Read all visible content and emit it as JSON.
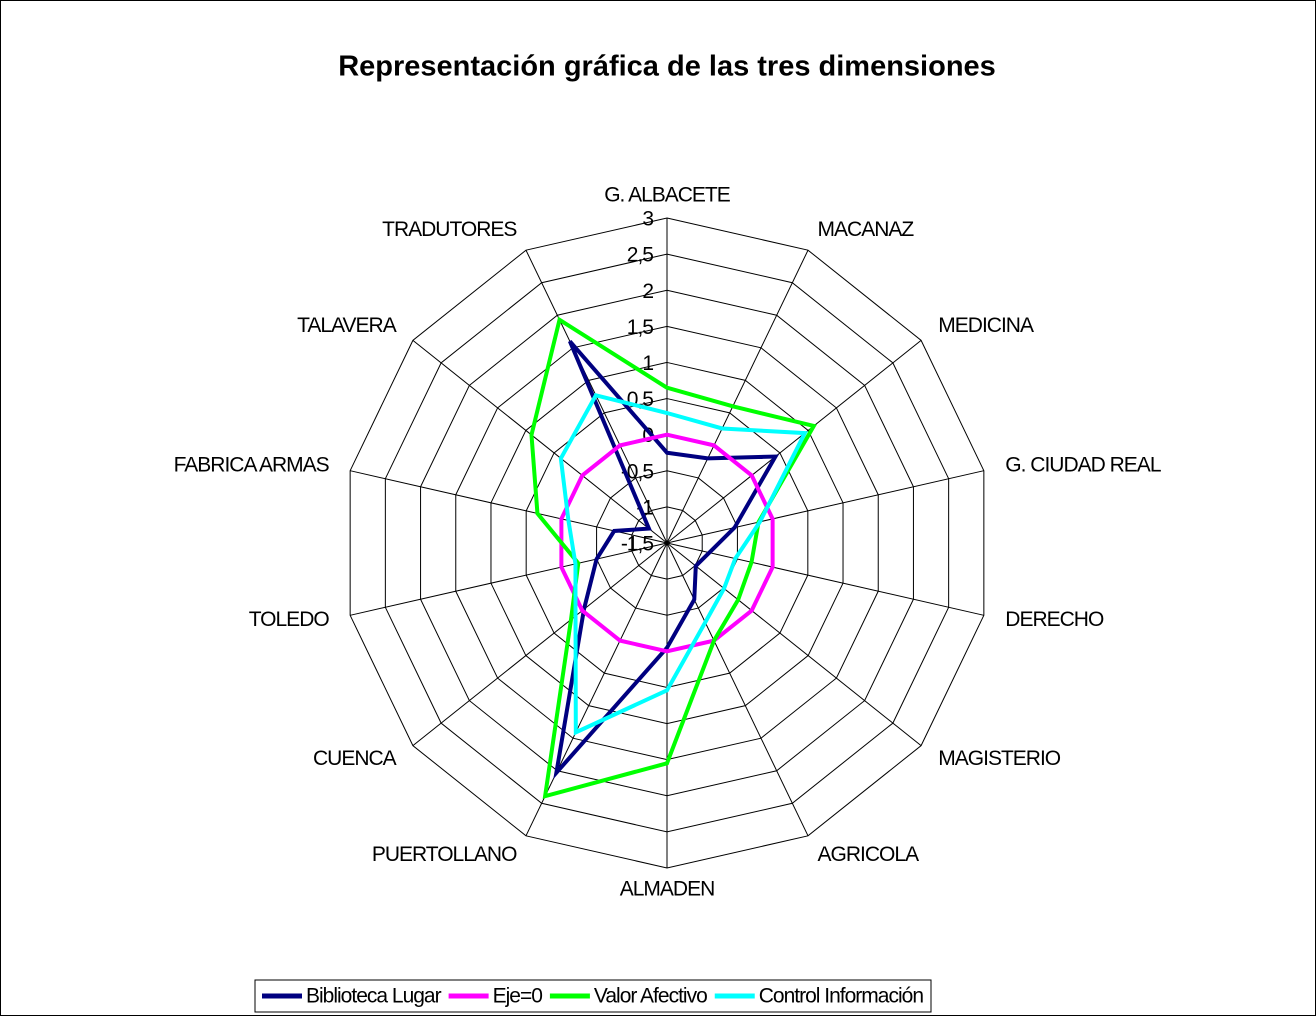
{
  "chart_data": {
    "type": "radar",
    "title": "Representación gráfica de las tres dimensiones",
    "categories": [
      "G. ALBACETE",
      "MACANAZ",
      "MEDICINA",
      "G. CIUDAD REAL",
      "DERECHO",
      "MAGISTERIO",
      "AGRICOLA",
      "ALMADEN",
      "PUERTOLLANO",
      "CUENCA",
      "TOLEDO",
      "FABRICA ARMAS",
      "TALAVERA",
      "TRADUTORES"
    ],
    "series": [
      {
        "name": "Biblioteca Lugar",
        "color": "#000080",
        "values": [
          -0.25,
          -0.2,
          0.42,
          -0.54,
          -0.9,
          -0.99,
          -0.63,
          -0.05,
          2.03,
          -0.03,
          -0.5,
          -0.75,
          -1.18,
          1.6
        ]
      },
      {
        "name": "Eje=0",
        "color": "#ff00ff",
        "values": [
          0,
          0,
          0,
          0,
          0,
          0,
          0,
          0,
          0,
          0,
          0,
          0,
          0,
          0
        ]
      },
      {
        "name": "Valor Afectivo",
        "color": "#00ff00",
        "values": [
          0.65,
          0.6,
          1.1,
          -0.2,
          -0.3,
          -0.24,
          0,
          1.55,
          2.39,
          0.2,
          -0.24,
          0.34,
          0.9,
          1.93
        ]
      },
      {
        "name": "Control Información",
        "color": "#00ffff",
        "values": [
          0.3,
          0.26,
          0.94,
          -0.18,
          -0.53,
          -0.49,
          -0.28,
          0.54,
          1.41,
          0.12,
          -0.2,
          -0.1,
          0.38,
          0.77
        ]
      }
    ],
    "ylim": [
      -1.5,
      3
    ],
    "yticks": [
      {
        "value": -1.5,
        "label": "-1,5"
      },
      -1,
      {
        "value": -0.5,
        "label": "-0,5"
      },
      0,
      {
        "value": 0.5,
        "label": "0,5"
      },
      1,
      {
        "value": 1.5,
        "label": "1,5"
      },
      2,
      {
        "value": 2.5,
        "label": "2,5"
      },
      3
    ],
    "grid": true,
    "legend": "bottom"
  }
}
